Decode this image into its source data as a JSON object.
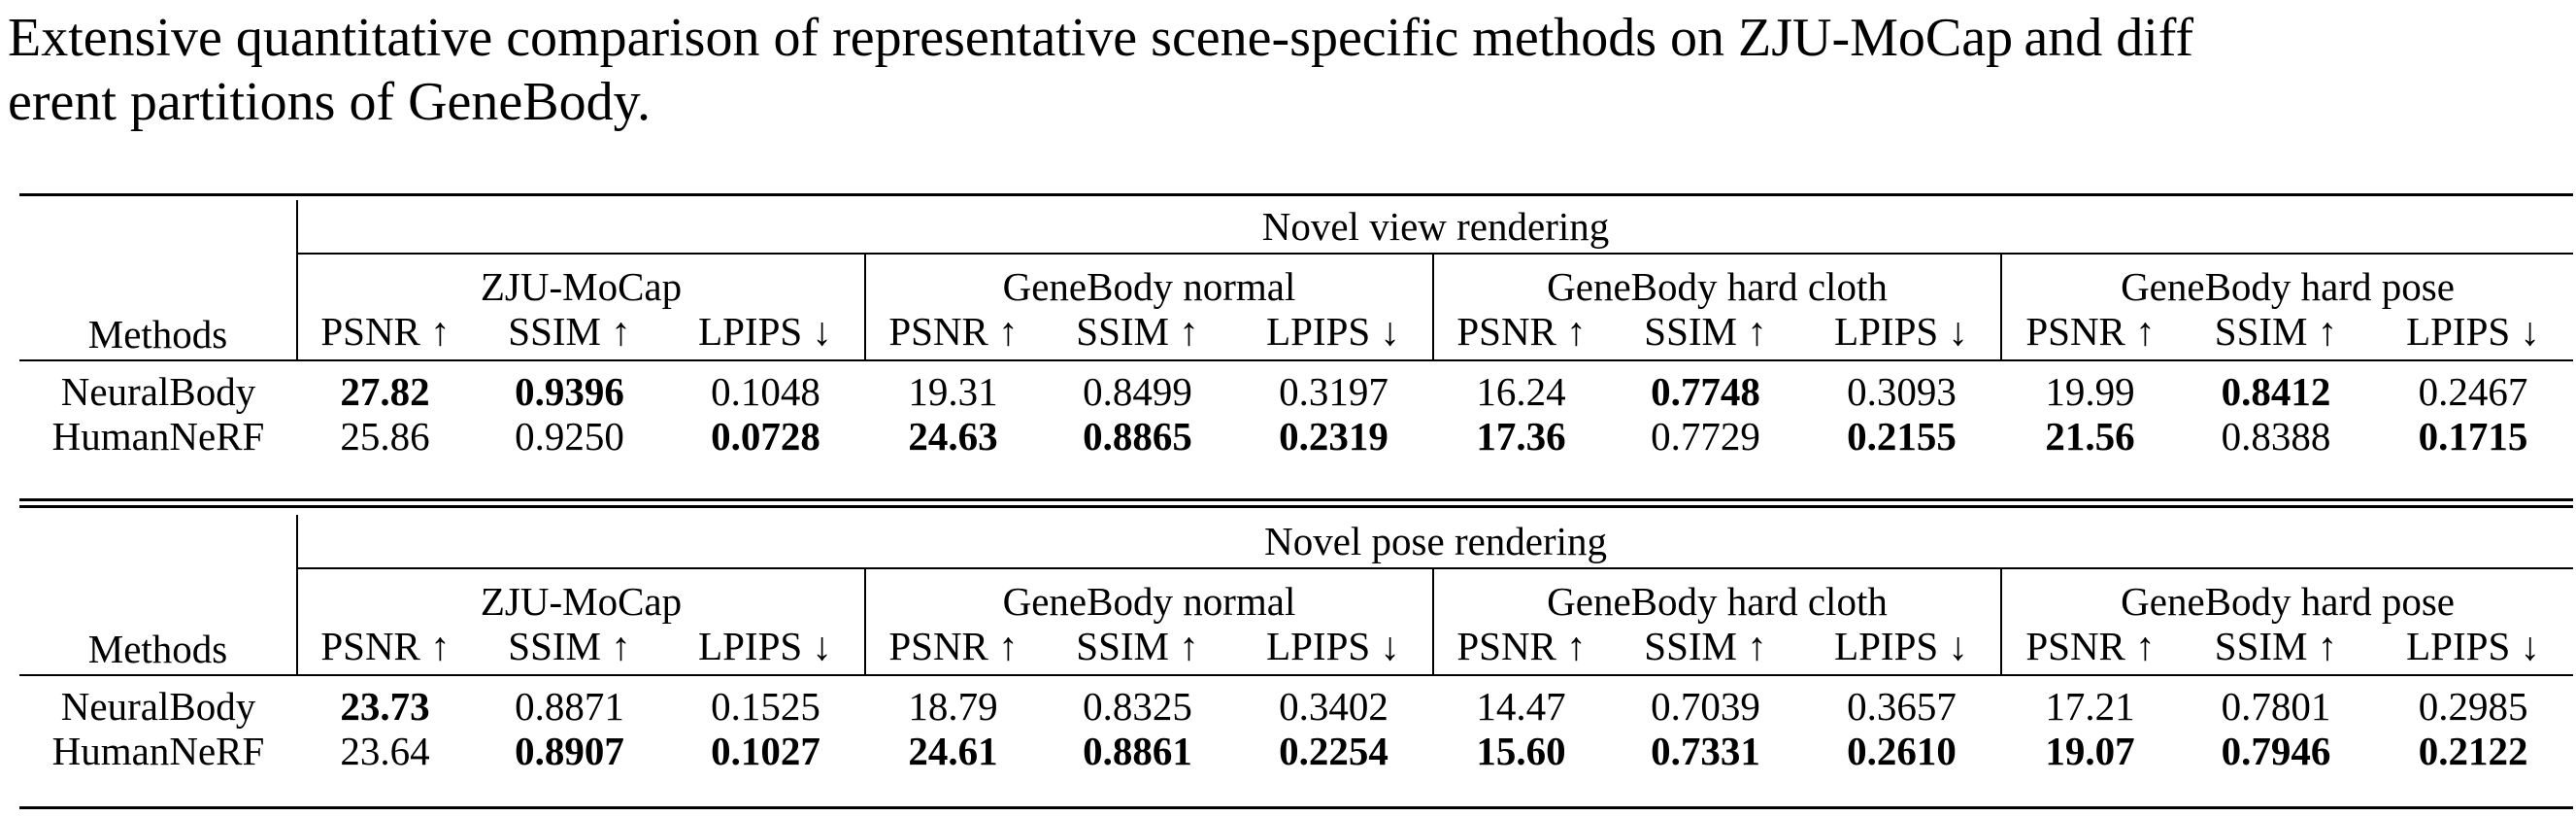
{
  "caption": {
    "line1": "Extensive quantitative comparison of representative scene-specific methods on ZJU-MoCap and diff",
    "line2": "erent partitions of GeneBody."
  },
  "tables": [
    {
      "title": "Novel view rendering",
      "method_header": "Methods",
      "groups": [
        "ZJU-MoCap",
        "GeneBody normal",
        "GeneBody hard cloth",
        "GeneBody hard pose"
      ],
      "metrics": [
        "PSNR ↑",
        "SSIM ↑",
        "LPIPS ↓",
        "PSNR ↑",
        "SSIM ↑",
        "LPIPS ↓",
        "PSNR ↑",
        "SSIM ↑",
        "LPIPS ↓",
        "PSNR ↑",
        "SSIM ↑",
        "LPIPS ↓"
      ],
      "rows": [
        {
          "method": "NeuralBody",
          "values": [
            "27.82",
            "0.9396",
            "0.1048",
            "19.31",
            "0.8499",
            "0.3197",
            "16.24",
            "0.7748",
            "0.3093",
            "19.99",
            "0.8412",
            "0.2467"
          ],
          "bold": [
            true,
            true,
            false,
            false,
            false,
            false,
            false,
            true,
            false,
            false,
            true,
            false
          ]
        },
        {
          "method": "HumanNeRF",
          "values": [
            "25.86",
            "0.9250",
            "0.0728",
            "24.63",
            "0.8865",
            "0.2319",
            "17.36",
            "0.7729",
            "0.2155",
            "21.56",
            "0.8388",
            "0.1715"
          ],
          "bold": [
            false,
            false,
            true,
            true,
            true,
            true,
            true,
            false,
            true,
            true,
            false,
            true
          ]
        }
      ]
    },
    {
      "title": "Novel pose rendering",
      "method_header": "Methods",
      "groups": [
        "ZJU-MoCap",
        "GeneBody normal",
        "GeneBody hard cloth",
        "GeneBody hard pose"
      ],
      "metrics": [
        "PSNR ↑",
        "SSIM ↑",
        "LPIPS ↓",
        "PSNR ↑",
        "SSIM ↑",
        "LPIPS ↓",
        "PSNR ↑",
        "SSIM ↑",
        "LPIPS ↓",
        "PSNR ↑",
        "SSIM ↑",
        "LPIPS ↓"
      ],
      "rows": [
        {
          "method": "NeuralBody",
          "values": [
            "23.73",
            "0.8871",
            "0.1525",
            "18.79",
            "0.8325",
            "0.3402",
            "14.47",
            "0.7039",
            "0.3657",
            "17.21",
            "0.7801",
            "0.2985"
          ],
          "bold": [
            true,
            false,
            false,
            false,
            false,
            false,
            false,
            false,
            false,
            false,
            false,
            false
          ]
        },
        {
          "method": "HumanNeRF",
          "values": [
            "23.64",
            "0.8907",
            "0.1027",
            "24.61",
            "0.8861",
            "0.2254",
            "15.60",
            "0.7331",
            "0.2610",
            "19.07",
            "0.7946",
            "0.2122"
          ],
          "bold": [
            false,
            true,
            true,
            true,
            true,
            true,
            true,
            true,
            true,
            true,
            true,
            true
          ]
        }
      ]
    }
  ]
}
